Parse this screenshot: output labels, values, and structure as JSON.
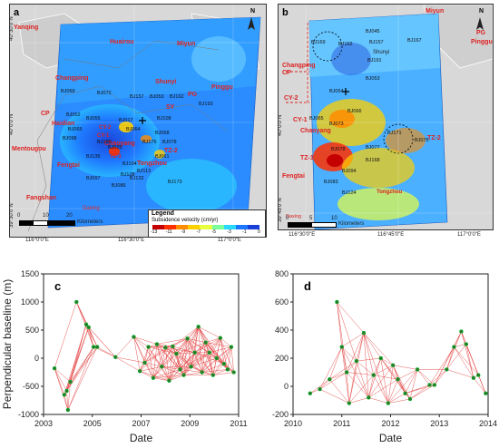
{
  "panel_a": {
    "letter": "a",
    "north": "N",
    "places_red": [
      "Yanqing",
      "Huairou",
      "Miyun",
      "Changping",
      "Shunyi",
      "Pinggu",
      "Haidian",
      "Chaoyang",
      "Mentougou",
      "Fengtai",
      "Tongzhou",
      "Fangshan",
      "Daxing"
    ],
    "zones": [
      "CP",
      "CY-1",
      "CY-2",
      "TZ-1",
      "TZ-2",
      "SY",
      "PG"
    ],
    "benchmarks": [
      "BJ069",
      "BJ072",
      "BJ157",
      "BJ053",
      "BJ162",
      "BJ193",
      "BJ052",
      "BJ055",
      "BJ017",
      "BJ068",
      "BJ065",
      "BJ175",
      "BJ078",
      "BJ064",
      "BJ061",
      "BJ025",
      "BJ108",
      "BJ135",
      "BJ104",
      "BJ113",
      "BJ098",
      "BJ150",
      "BJ128",
      "BJ097",
      "BJ086",
      "BJ173",
      "BJ132"
    ],
    "lat_ticks": [
      "40°30'0\"N",
      "40°0'0\"N",
      "39°30'0\"N"
    ],
    "lon_ticks": [
      "116°0'0\"E",
      "116°30'0\"E",
      "117°0'0\"E"
    ],
    "scale_ticks": [
      "0",
      "10",
      "20"
    ],
    "scale_unit": "Kilometers",
    "legend_title": "Legend",
    "legend_sub": "Subsidence velocity (cm/yr)",
    "legend_ticks": [
      "-13",
      "-11",
      "-9",
      "-7",
      "-5",
      "-3",
      "-1",
      "0"
    ],
    "legend_colors": [
      "#c40000",
      "#ff3000",
      "#ff8c00",
      "#ffd000",
      "#e8ff40",
      "#7cff9a",
      "#28d8ff",
      "#1e78ff",
      "#1a3fd6"
    ]
  },
  "panel_b": {
    "letter": "b",
    "north": "N",
    "places_red": [
      "Miyun",
      "Changping",
      "Chaoyang",
      "Fengtai",
      "Pinggu",
      "Daxing"
    ],
    "zones": [
      "CP",
      "CY-2",
      "CY-1",
      "TZ-1",
      "TZ-2",
      "PG"
    ],
    "other_labels": [
      "Shunyi",
      "Tongzhou"
    ],
    "benchmarks": [
      "BJ045",
      "BJ167",
      "BJ169",
      "BJ162",
      "BJ157",
      "BJ191",
      "BJ053",
      "BJ054",
      "BJ065",
      "BJ066",
      "BJ073",
      "BJ075",
      "BJ078",
      "BJ077",
      "BJ171",
      "BJ168",
      "BJ094",
      "BJ083",
      "BJ124"
    ],
    "lat_ticks": [
      "40°0'0\"N",
      "39°45'0\"N"
    ],
    "lon_ticks": [
      "116°30'0\"E",
      "116°45'0\"E",
      "117°0'0\"E"
    ],
    "scale_ticks": [
      "0",
      "5",
      "10"
    ],
    "scale_unit": "Kilometers"
  },
  "chart_data": [
    {
      "type": "scatter",
      "panel": "c",
      "xlabel": "Date",
      "ylabel": "Perpendicular baseline (m)",
      "xlim": [
        2003,
        2011
      ],
      "ylim": [
        -1000,
        1500
      ],
      "x_ticks": [
        2003,
        2005,
        2007,
        2009,
        2011
      ],
      "y_ticks": [
        -1000,
        -500,
        0,
        500,
        1000,
        1500
      ],
      "points": [
        {
          "x": 2003.45,
          "y": -180
        },
        {
          "x": 2003.85,
          "y": -650
        },
        {
          "x": 2003.95,
          "y": -580
        },
        {
          "x": 2004.0,
          "y": -920
        },
        {
          "x": 2004.1,
          "y": -420
        },
        {
          "x": 2004.35,
          "y": 1000
        },
        {
          "x": 2004.75,
          "y": 600
        },
        {
          "x": 2004.85,
          "y": 550
        },
        {
          "x": 2005.05,
          "y": 200
        },
        {
          "x": 2005.2,
          "y": 200
        },
        {
          "x": 2005.95,
          "y": 20
        },
        {
          "x": 2006.7,
          "y": 380
        },
        {
          "x": 2006.95,
          "y": -230
        },
        {
          "x": 2007.15,
          "y": -80
        },
        {
          "x": 2007.3,
          "y": 200
        },
        {
          "x": 2007.5,
          "y": -350
        },
        {
          "x": 2007.65,
          "y": 250
        },
        {
          "x": 2007.85,
          "y": -150
        },
        {
          "x": 2008.0,
          "y": 190
        },
        {
          "x": 2008.15,
          "y": -400
        },
        {
          "x": 2008.3,
          "y": 210
        },
        {
          "x": 2008.45,
          "y": 80
        },
        {
          "x": 2008.6,
          "y": -200
        },
        {
          "x": 2008.75,
          "y": -300
        },
        {
          "x": 2008.9,
          "y": 350
        },
        {
          "x": 2009.05,
          "y": -150
        },
        {
          "x": 2009.2,
          "y": 100
        },
        {
          "x": 2009.35,
          "y": 560
        },
        {
          "x": 2009.5,
          "y": -250
        },
        {
          "x": 2009.65,
          "y": 280
        },
        {
          "x": 2009.8,
          "y": 100
        },
        {
          "x": 2009.95,
          "y": -300
        },
        {
          "x": 2010.1,
          "y": 0
        },
        {
          "x": 2010.25,
          "y": 360
        },
        {
          "x": 2010.4,
          "y": -100
        },
        {
          "x": 2010.55,
          "y": -200
        },
        {
          "x": 2010.7,
          "y": 200
        },
        {
          "x": 2010.8,
          "y": -250
        }
      ]
    },
    {
      "type": "scatter",
      "panel": "d",
      "xlabel": "Date",
      "ylabel": "",
      "xlim": [
        2010,
        2014
      ],
      "ylim": [
        -200,
        800
      ],
      "x_ticks": [
        2010,
        2011,
        2012,
        2013,
        2014
      ],
      "y_ticks": [
        -200,
        0,
        200,
        400,
        600,
        800
      ],
      "points": [
        {
          "x": 2010.35,
          "y": -50
        },
        {
          "x": 2010.55,
          "y": -20
        },
        {
          "x": 2010.75,
          "y": 50
        },
        {
          "x": 2010.9,
          "y": 600
        },
        {
          "x": 2011.0,
          "y": 280
        },
        {
          "x": 2011.1,
          "y": 100
        },
        {
          "x": 2011.15,
          "y": -120
        },
        {
          "x": 2011.3,
          "y": 180
        },
        {
          "x": 2011.45,
          "y": 380
        },
        {
          "x": 2011.55,
          "y": -80
        },
        {
          "x": 2011.65,
          "y": 80
        },
        {
          "x": 2011.8,
          "y": 200
        },
        {
          "x": 2011.95,
          "y": -120
        },
        {
          "x": 2012.05,
          "y": 150
        },
        {
          "x": 2012.15,
          "y": 50
        },
        {
          "x": 2012.3,
          "y": -50
        },
        {
          "x": 2012.4,
          "y": -90
        },
        {
          "x": 2012.55,
          "y": 120
        },
        {
          "x": 2012.8,
          "y": 10
        },
        {
          "x": 2012.9,
          "y": 10
        },
        {
          "x": 2013.15,
          "y": 120
        },
        {
          "x": 2013.3,
          "y": 280
        },
        {
          "x": 2013.45,
          "y": 390
        },
        {
          "x": 2013.55,
          "y": 300
        },
        {
          "x": 2013.7,
          "y": 60
        },
        {
          "x": 2013.8,
          "y": 80
        },
        {
          "x": 2013.95,
          "y": -50
        }
      ]
    }
  ]
}
